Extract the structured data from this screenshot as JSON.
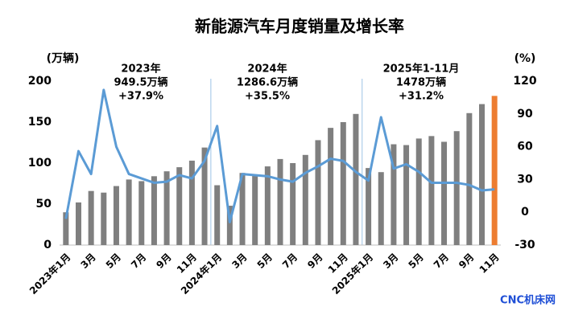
{
  "chart_data": {
    "type": "bar_line",
    "title": "新能源汽车月度销量及增长率",
    "y_label": "(万辆)",
    "y2_label": "(%)",
    "categories": [
      "2023年1月",
      null,
      "3月",
      null,
      "5月",
      null,
      "7月",
      null,
      "9月",
      null,
      "11月",
      null,
      "2024年1月",
      null,
      "3月",
      null,
      "5月",
      null,
      "7月",
      null,
      "9月",
      null,
      "11月",
      null,
      "2025年1月",
      null,
      "3月",
      null,
      "5月",
      null,
      "7月",
      null,
      "9月",
      null,
      "11月"
    ],
    "ylim": [
      0,
      200
    ],
    "yticks": [
      0,
      50,
      100,
      150,
      200
    ],
    "y2lim": [
      -30,
      120
    ],
    "y2ticks": [
      -30,
      0,
      30,
      60,
      90,
      120
    ],
    "series": [
      {
        "type": "bar",
        "colors": [
          "#7f7f7f",
          "#7f7f7f",
          "#7f7f7f",
          "#7f7f7f",
          "#7f7f7f",
          "#7f7f7f",
          "#7f7f7f",
          "#7f7f7f",
          "#7f7f7f",
          "#7f7f7f",
          "#7f7f7f",
          "#7f7f7f",
          "#7f7f7f",
          "#7f7f7f",
          "#7f7f7f",
          "#7f7f7f",
          "#7f7f7f",
          "#7f7f7f",
          "#7f7f7f",
          "#7f7f7f",
          "#7f7f7f",
          "#7f7f7f",
          "#7f7f7f",
          "#7f7f7f",
          "#7f7f7f",
          "#7f7f7f",
          "#7f7f7f",
          "#7f7f7f",
          "#7f7f7f",
          "#7f7f7f",
          "#7f7f7f",
          "#7f7f7f",
          "#7f7f7f",
          "#7f7f7f",
          "#ed7d31"
        ],
        "values": [
          40,
          52,
          66,
          64,
          72,
          80,
          78,
          84,
          90,
          95,
          103,
          119,
          73,
          48,
          88,
          85,
          96,
          105,
          100,
          110,
          128,
          143,
          150,
          160,
          94,
          89,
          123,
          122,
          130,
          133,
          126,
          139,
          161,
          172,
          182
        ]
      },
      {
        "type": "line",
        "axis": "y2",
        "color": "#5b9bd5",
        "values": [
          -6,
          56,
          35,
          112,
          60,
          35,
          31,
          27,
          28,
          34,
          31,
          47,
          79,
          -9,
          35,
          34,
          33,
          30,
          28,
          36,
          42,
          49,
          47,
          37,
          29,
          87,
          40,
          44,
          37,
          27,
          27,
          27,
          25,
          20,
          21
        ]
      }
    ],
    "annotations": [
      {
        "lines": [
          "2023年",
          "949.5万辆",
          "+37.9%"
        ]
      },
      {
        "lines": [
          "2024年",
          "1286.6万辆",
          "+35.5%"
        ]
      },
      {
        "lines": [
          "2025年1-11月",
          "1478万辆",
          "+31.2%"
        ]
      }
    ],
    "source": "CNC机床网"
  }
}
